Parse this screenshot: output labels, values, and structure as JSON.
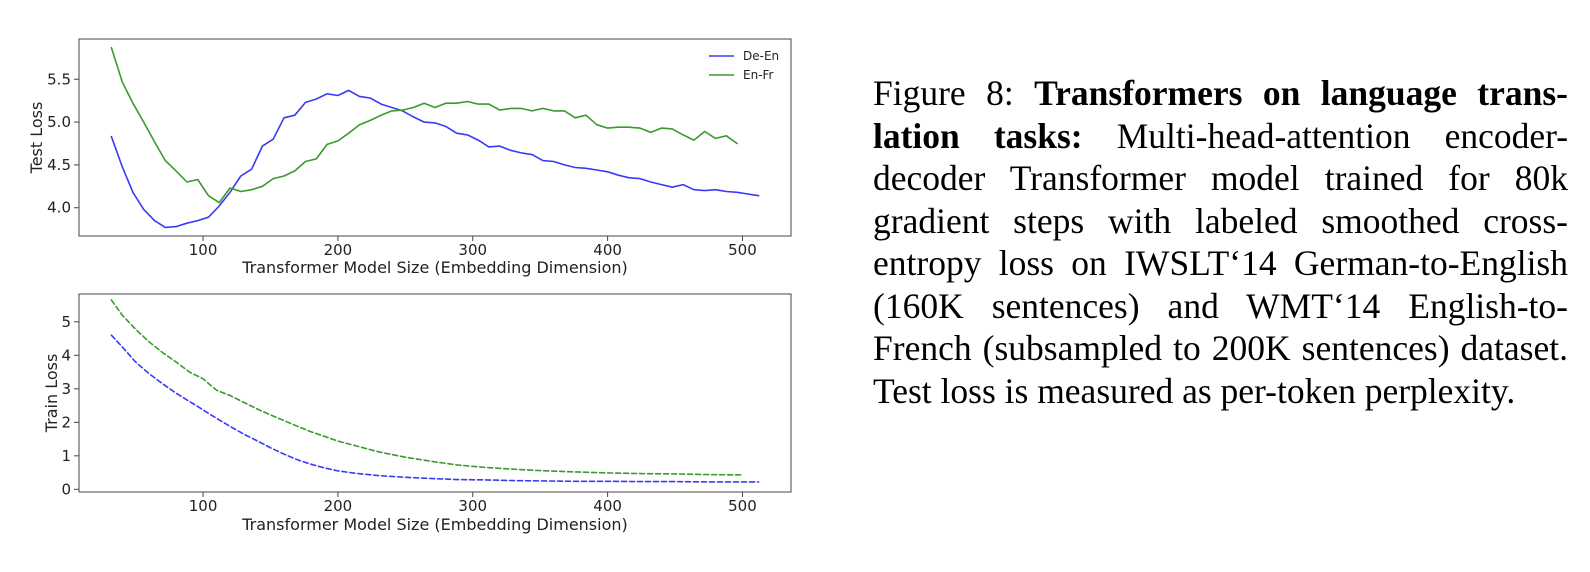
{
  "caption": {
    "label": "Figure 8:",
    "bold_text": "Transformers on language trans­lation tasks:",
    "body_text": "Multi-head-attention encoder-decoder Transformer model trained for 80k gradient steps with labeled smoothed cross-entropy loss on IWSLT‘14 German-to-English (160K sentences) and WMT‘14 English-to-French (subsampled to 200K sen­tences) dataset. Test loss is measured as per-token perplexity."
  },
  "colors": {
    "de_en": "#3a3af5",
    "en_fr": "#3a9a2e"
  },
  "chart_data": [
    {
      "type": "line",
      "xlabel": "Transformer Model Size (Embedding Dimension)",
      "ylabel": "Test Loss",
      "xlim": [
        8,
        536
      ],
      "ylim": [
        3.67,
        5.97
      ],
      "xticks": [
        100,
        200,
        300,
        400,
        500
      ],
      "yticks": [
        4.0,
        4.5,
        5.0,
        5.5
      ],
      "ytick_labels": [
        "4.0",
        "4.5",
        "5.0",
        "5.5"
      ],
      "legend": "top-right",
      "series": [
        {
          "name": "De-En",
          "color": "#3a3af5",
          "style": "solid",
          "x": [
            32,
            40,
            48,
            56,
            64,
            72,
            80,
            88,
            96,
            104,
            112,
            120,
            128,
            136,
            144,
            152,
            160,
            168,
            176,
            184,
            192,
            200,
            208,
            216,
            224,
            232,
            240,
            248,
            256,
            264,
            272,
            280,
            288,
            296,
            304,
            312,
            320,
            328,
            336,
            344,
            352,
            360,
            368,
            376,
            384,
            392,
            400,
            408,
            416,
            424,
            432,
            440,
            448,
            456,
            464,
            472,
            480,
            488,
            496,
            504,
            512
          ],
          "values": [
            4.83,
            4.48,
            4.18,
            3.98,
            3.85,
            3.77,
            3.78,
            3.82,
            3.85,
            3.89,
            4.02,
            4.18,
            4.37,
            4.45,
            4.72,
            4.8,
            5.05,
            5.08,
            5.23,
            5.27,
            5.33,
            5.31,
            5.37,
            5.3,
            5.28,
            5.21,
            5.17,
            5.13,
            5.06,
            5.0,
            4.99,
            4.95,
            4.87,
            4.85,
            4.79,
            4.71,
            4.72,
            4.67,
            4.64,
            4.62,
            4.55,
            4.54,
            4.5,
            4.47,
            4.46,
            4.44,
            4.42,
            4.38,
            4.35,
            4.34,
            4.3,
            4.27,
            4.24,
            4.27,
            4.21,
            4.2,
            4.21,
            4.19,
            4.18,
            4.16,
            4.14
          ]
        },
        {
          "name": "En-Fr",
          "color": "#3a9a2e",
          "style": "solid",
          "x": [
            32,
            40,
            48,
            56,
            64,
            72,
            80,
            88,
            96,
            104,
            112,
            120,
            128,
            136,
            144,
            152,
            160,
            168,
            176,
            184,
            192,
            200,
            208,
            216,
            224,
            232,
            240,
            248,
            256,
            264,
            272,
            280,
            288,
            296,
            304,
            312,
            320,
            328,
            336,
            344,
            352,
            360,
            368,
            376,
            384,
            392,
            400,
            408,
            416,
            424,
            432,
            440,
            448,
            456,
            464,
            472,
            480,
            488,
            496
          ],
          "values": [
            5.87,
            5.47,
            5.22,
            5.0,
            4.77,
            4.55,
            4.43,
            4.3,
            4.33,
            4.14,
            4.06,
            4.23,
            4.19,
            4.21,
            4.25,
            4.34,
            4.37,
            4.43,
            4.54,
            4.57,
            4.74,
            4.78,
            4.87,
            4.97,
            5.02,
            5.08,
            5.13,
            5.14,
            5.17,
            5.22,
            5.17,
            5.22,
            5.22,
            5.24,
            5.21,
            5.21,
            5.14,
            5.16,
            5.16,
            5.13,
            5.16,
            5.13,
            5.13,
            5.05,
            5.08,
            4.97,
            4.93,
            4.94,
            4.94,
            4.93,
            4.88,
            4.93,
            4.92,
            4.85,
            4.79,
            4.89,
            4.81,
            4.84,
            4.75
          ]
        }
      ]
    },
    {
      "type": "line",
      "xlabel": "Transformer Model Size (Embedding Dimension)",
      "ylabel": "Train Loss",
      "xlim": [
        8,
        536
      ],
      "ylim": [
        -0.08,
        5.83
      ],
      "xticks": [
        100,
        200,
        300,
        400,
        500
      ],
      "yticks": [
        0,
        1,
        2,
        3,
        4,
        5
      ],
      "ytick_labels": [
        "0",
        "1",
        "2",
        "3",
        "4",
        "5"
      ],
      "series": [
        {
          "color": "#3a3af5",
          "style": "dashed",
          "x": [
            32,
            40,
            50,
            60,
            70,
            80,
            90,
            100,
            110,
            120,
            130,
            140,
            150,
            160,
            170,
            180,
            190,
            200,
            215,
            230,
            250,
            270,
            290,
            310,
            330,
            350,
            375,
            400,
            425,
            450,
            475,
            500,
            512
          ],
          "values": [
            4.6,
            4.25,
            3.8,
            3.45,
            3.15,
            2.87,
            2.62,
            2.37,
            2.12,
            1.88,
            1.65,
            1.45,
            1.24,
            1.05,
            0.88,
            0.75,
            0.64,
            0.55,
            0.47,
            0.41,
            0.36,
            0.32,
            0.29,
            0.28,
            0.26,
            0.25,
            0.24,
            0.24,
            0.23,
            0.23,
            0.22,
            0.22,
            0.22
          ]
        },
        {
          "color": "#3a9a2e",
          "style": "dashed",
          "x": [
            32,
            40,
            50,
            60,
            70,
            80,
            90,
            100,
            110,
            120,
            130,
            140,
            150,
            160,
            170,
            180,
            190,
            200,
            215,
            230,
            250,
            270,
            290,
            310,
            330,
            350,
            375,
            400,
            425,
            450,
            475,
            500
          ],
          "values": [
            5.65,
            5.2,
            4.78,
            4.4,
            4.08,
            3.8,
            3.5,
            3.3,
            2.96,
            2.8,
            2.6,
            2.4,
            2.22,
            2.05,
            1.88,
            1.72,
            1.58,
            1.44,
            1.28,
            1.12,
            0.96,
            0.83,
            0.72,
            0.65,
            0.6,
            0.56,
            0.52,
            0.49,
            0.47,
            0.46,
            0.44,
            0.43
          ]
        }
      ]
    }
  ]
}
